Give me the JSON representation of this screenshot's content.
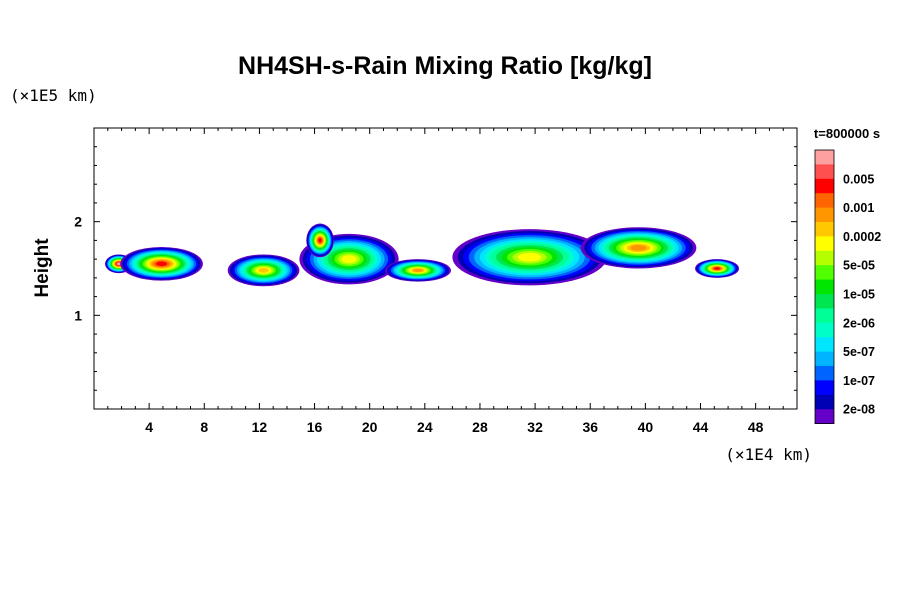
{
  "chart_data": {
    "type": "heatmap",
    "title": "NH4SH-s-Rain Mixing Ratio [kg/kg]",
    "xlabel": "",
    "ylabel": "Height",
    "x_unit_label": "(×1E4 km)",
    "y_unit_label": "(×1E5 km)",
    "xlim": [
      0,
      51
    ],
    "ylim": [
      0,
      3
    ],
    "x_ticks": [
      4,
      8,
      12,
      16,
      20,
      24,
      28,
      32,
      36,
      40,
      44,
      48
    ],
    "y_ticks": [
      1,
      2
    ],
    "x_minor_step": 1,
    "y_minor_step": 0.2,
    "time_label": "t=800000 s",
    "colorbar": {
      "placement": "right",
      "levels": [
        {
          "label": "",
          "color": "#ffa0a0"
        },
        {
          "label": "0.005",
          "color": "#ff5050"
        },
        {
          "label": "",
          "color": "#ff0000"
        },
        {
          "label": "0.001",
          "color": "#ff6400"
        },
        {
          "label": "",
          "color": "#ff9600"
        },
        {
          "label": "0.0002",
          "color": "#ffc800"
        },
        {
          "label": "",
          "color": "#ffff00"
        },
        {
          "label": "5e-05",
          "color": "#b4ff00"
        },
        {
          "label": "",
          "color": "#50ff00"
        },
        {
          "label": "1e-05",
          "color": "#00e600"
        },
        {
          "label": "",
          "color": "#00e650"
        },
        {
          "label": "2e-06",
          "color": "#00ff96"
        },
        {
          "label": "",
          "color": "#00ffc8"
        },
        {
          "label": "5e-07",
          "color": "#00e6ff"
        },
        {
          "label": "",
          "color": "#00b4ff"
        },
        {
          "label": "1e-07",
          "color": "#0064ff"
        },
        {
          "label": "",
          "color": "#0000ff"
        },
        {
          "label": "2e-08",
          "color": "#0000b4"
        },
        {
          "label": "",
          "color": "#6400c8"
        }
      ]
    },
    "cells": [
      {
        "x": 1.8,
        "y": 1.55,
        "rx": 1.0,
        "ry": 0.1,
        "level": 0
      },
      {
        "x": 4.9,
        "y": 1.55,
        "rx": 3.0,
        "ry": 0.18,
        "level": 2
      },
      {
        "x": 12.3,
        "y": 1.48,
        "rx": 2.6,
        "ry": 0.17,
        "level": 5
      },
      {
        "x": 18.5,
        "y": 1.6,
        "rx": 3.6,
        "ry": 0.27,
        "level": 6
      },
      {
        "x": 16.4,
        "y": 1.8,
        "rx": 1.0,
        "ry": 0.18,
        "level": 2
      },
      {
        "x": 23.5,
        "y": 1.48,
        "rx": 2.4,
        "ry": 0.12,
        "level": 4
      },
      {
        "x": 31.6,
        "y": 1.62,
        "rx": 5.6,
        "ry": 0.3,
        "level": 6
      },
      {
        "x": 39.5,
        "y": 1.72,
        "rx": 4.2,
        "ry": 0.22,
        "level": 4
      },
      {
        "x": 45.2,
        "y": 1.5,
        "rx": 1.6,
        "ry": 0.1,
        "level": 2
      }
    ]
  }
}
